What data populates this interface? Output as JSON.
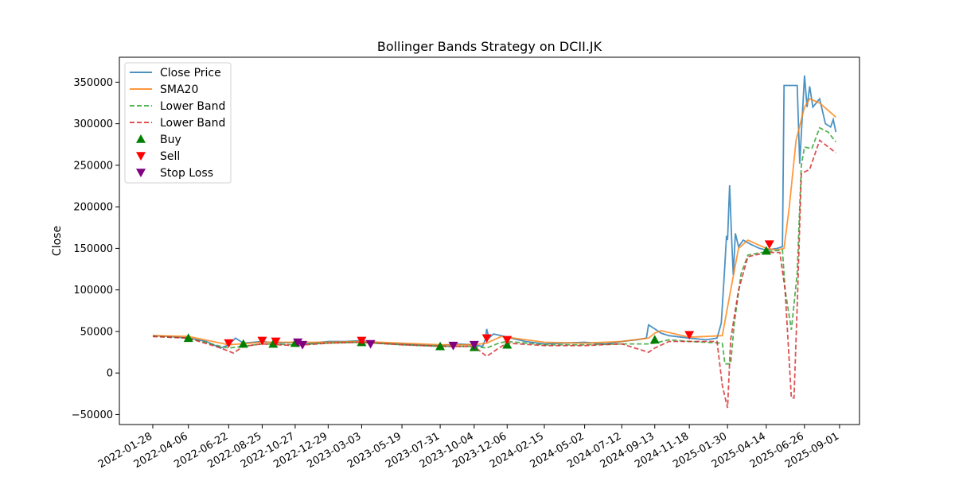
{
  "chart_data": {
    "type": "line",
    "title": "Bollinger Bands Strategy on DCII.JK",
    "xlabel": "",
    "ylabel": "Close",
    "x_range": [
      "2022-01-28",
      "2025-09-30"
    ],
    "ylim": [
      -62000,
      380000
    ],
    "x_ticks": [
      "2022-01-28",
      "2022-04-06",
      "2022-06-22",
      "2022-08-25",
      "2022-10-27",
      "2022-12-29",
      "2023-03-03",
      "2023-05-19",
      "2023-07-31",
      "2023-10-04",
      "2023-12-06",
      "2024-02-15",
      "2024-05-02",
      "2024-07-12",
      "2024-09-13",
      "2024-11-18",
      "2025-01-30",
      "2025-04-14",
      "2025-06-26",
      "2025-09-01"
    ],
    "y_ticks": [
      -50000,
      0,
      50000,
      100000,
      150000,
      200000,
      250000,
      300000,
      350000
    ],
    "y_tick_labels": [
      "−50000",
      "0",
      "50000",
      "100000",
      "150000",
      "200000",
      "250000",
      "300000",
      "350000"
    ],
    "grid": false,
    "legend_position": "top-left",
    "colors": {
      "close": "#1f77b4",
      "sma": "#ff7f0e",
      "lower1": "#2ca02c",
      "lower2": "#d62728",
      "buy": "#008000",
      "sell": "#ff0000",
      "stop": "#800080"
    },
    "series": [
      {
        "name": "Close Price",
        "key": "close",
        "style": "solid",
        "points": [
          [
            "2022-01-28",
            45000
          ],
          [
            "2022-03-01",
            44000
          ],
          [
            "2022-04-06",
            42000
          ],
          [
            "2022-05-10",
            38000
          ],
          [
            "2022-06-07",
            30000
          ],
          [
            "2022-06-22",
            34000
          ],
          [
            "2022-07-05",
            42000
          ],
          [
            "2022-07-20",
            36000
          ],
          [
            "2022-08-25",
            38000
          ],
          [
            "2022-09-20",
            36000
          ],
          [
            "2022-10-27",
            37000
          ],
          [
            "2022-11-15",
            35000
          ],
          [
            "2022-12-29",
            38000
          ],
          [
            "2023-02-01",
            38000
          ],
          [
            "2023-03-03",
            39000
          ],
          [
            "2023-04-05",
            36000
          ],
          [
            "2023-05-19",
            35000
          ],
          [
            "2023-06-20",
            34000
          ],
          [
            "2023-07-31",
            33000
          ],
          [
            "2023-09-01",
            35000
          ],
          [
            "2023-10-04",
            34000
          ],
          [
            "2023-10-20",
            32000
          ],
          [
            "2023-10-25",
            40000
          ],
          [
            "2023-10-28",
            53000
          ],
          [
            "2023-11-01",
            42000
          ],
          [
            "2023-11-10",
            47000
          ],
          [
            "2023-11-25",
            45000
          ],
          [
            "2023-12-06",
            43000
          ],
          [
            "2024-01-10",
            38000
          ],
          [
            "2024-02-15",
            35000
          ],
          [
            "2024-03-20",
            36000
          ],
          [
            "2024-05-02",
            37000
          ],
          [
            "2024-06-10",
            35000
          ],
          [
            "2024-07-12",
            38000
          ],
          [
            "2024-08-10",
            40000
          ],
          [
            "2024-08-28",
            42000
          ],
          [
            "2024-09-01",
            58000
          ],
          [
            "2024-09-13",
            53000
          ],
          [
            "2024-09-25",
            48000
          ],
          [
            "2024-10-10",
            45000
          ],
          [
            "2024-11-18",
            42000
          ],
          [
            "2024-12-20",
            40000
          ],
          [
            "2025-01-10",
            42000
          ],
          [
            "2025-01-18",
            60000
          ],
          [
            "2025-01-24",
            120000
          ],
          [
            "2025-01-28",
            165000
          ],
          [
            "2025-01-30",
            160000
          ],
          [
            "2025-02-03",
            226000
          ],
          [
            "2025-02-07",
            160000
          ],
          [
            "2025-02-10",
            118000
          ],
          [
            "2025-02-14",
            168000
          ],
          [
            "2025-02-20",
            152000
          ],
          [
            "2025-03-01",
            160000
          ],
          [
            "2025-03-15",
            155000
          ],
          [
            "2025-04-01",
            150000
          ],
          [
            "2025-04-14",
            148000
          ],
          [
            "2025-05-05",
            150000
          ],
          [
            "2025-05-15",
            152000
          ],
          [
            "2025-05-18",
            346000
          ],
          [
            "2025-05-25",
            346000
          ],
          [
            "2025-06-12",
            346000
          ],
          [
            "2025-06-17",
            252000
          ],
          [
            "2025-06-21",
            300000
          ],
          [
            "2025-06-26",
            358000
          ],
          [
            "2025-07-01",
            320000
          ],
          [
            "2025-07-06",
            345000
          ],
          [
            "2025-07-12",
            320000
          ],
          [
            "2025-07-25",
            330000
          ],
          [
            "2025-08-05",
            300000
          ],
          [
            "2025-08-15",
            296000
          ],
          [
            "2025-08-20",
            305000
          ],
          [
            "2025-08-25",
            290000
          ]
        ]
      },
      {
        "name": "SMA20",
        "key": "sma",
        "style": "solid",
        "points": [
          [
            "2022-01-28",
            45000
          ],
          [
            "2022-04-06",
            44000
          ],
          [
            "2022-06-07",
            36000
          ],
          [
            "2022-06-22",
            34000
          ],
          [
            "2022-08-25",
            37000
          ],
          [
            "2022-10-27",
            37000
          ],
          [
            "2022-12-29",
            37000
          ],
          [
            "2023-03-03",
            38000
          ],
          [
            "2023-05-19",
            36000
          ],
          [
            "2023-07-31",
            34000
          ],
          [
            "2023-10-04",
            34000
          ],
          [
            "2023-10-28",
            36000
          ],
          [
            "2023-11-25",
            44000
          ],
          [
            "2023-12-06",
            43000
          ],
          [
            "2024-02-15",
            37000
          ],
          [
            "2024-05-02",
            36000
          ],
          [
            "2024-07-12",
            38000
          ],
          [
            "2024-09-01",
            42000
          ],
          [
            "2024-09-13",
            48000
          ],
          [
            "2024-09-25",
            51000
          ],
          [
            "2024-11-18",
            43000
          ],
          [
            "2025-01-20",
            45000
          ],
          [
            "2025-02-08",
            110000
          ],
          [
            "2025-02-20",
            150000
          ],
          [
            "2025-03-10",
            160000
          ],
          [
            "2025-04-14",
            150000
          ],
          [
            "2025-05-05",
            148000
          ],
          [
            "2025-05-18",
            150000
          ],
          [
            "2025-05-28",
            200000
          ],
          [
            "2025-06-10",
            280000
          ],
          [
            "2025-06-26",
            320000
          ],
          [
            "2025-07-06",
            330000
          ],
          [
            "2025-07-25",
            325000
          ],
          [
            "2025-08-25",
            308000
          ]
        ]
      },
      {
        "name": "Lower Band",
        "key": "lower1",
        "style": "dashed",
        "points": [
          [
            "2022-01-28",
            44000
          ],
          [
            "2022-04-06",
            42000
          ],
          [
            "2022-06-07",
            32000
          ],
          [
            "2022-06-22",
            30000
          ],
          [
            "2022-08-25",
            35000
          ],
          [
            "2022-10-27",
            34000
          ],
          [
            "2022-12-29",
            36000
          ],
          [
            "2023-03-03",
            37000
          ],
          [
            "2023-05-19",
            34000
          ],
          [
            "2023-07-31",
            32000
          ],
          [
            "2023-10-04",
            32000
          ],
          [
            "2023-10-28",
            30000
          ],
          [
            "2023-11-20",
            36000
          ],
          [
            "2023-12-06",
            38000
          ],
          [
            "2024-02-15",
            34000
          ],
          [
            "2024-05-02",
            34000
          ],
          [
            "2024-07-12",
            35000
          ],
          [
            "2024-09-01",
            35000
          ],
          [
            "2024-09-13",
            36000
          ],
          [
            "2024-10-10",
            40000
          ],
          [
            "2024-11-18",
            38000
          ],
          [
            "2025-01-20",
            36000
          ],
          [
            "2025-01-25",
            11000
          ],
          [
            "2025-02-05",
            11000
          ],
          [
            "2025-02-12",
            60000
          ],
          [
            "2025-02-25",
            120000
          ],
          [
            "2025-03-10",
            142000
          ],
          [
            "2025-04-14",
            146000
          ],
          [
            "2025-05-15",
            148000
          ],
          [
            "2025-05-20",
            100000
          ],
          [
            "2025-06-01",
            52000
          ],
          [
            "2025-06-12",
            120000
          ],
          [
            "2025-06-20",
            250000
          ],
          [
            "2025-06-26",
            272000
          ],
          [
            "2025-07-10",
            270000
          ],
          [
            "2025-07-25",
            295000
          ],
          [
            "2025-08-10",
            290000
          ],
          [
            "2025-08-25",
            278000
          ]
        ]
      },
      {
        "name": "Lower Band",
        "key": "lower2",
        "style": "dashed",
        "points": [
          [
            "2022-01-28",
            44000
          ],
          [
            "2022-04-06",
            42000
          ],
          [
            "2022-06-07",
            30000
          ],
          [
            "2022-07-01",
            24000
          ],
          [
            "2022-07-20",
            32000
          ],
          [
            "2022-08-25",
            35000
          ],
          [
            "2022-10-27",
            33000
          ],
          [
            "2022-12-29",
            36000
          ],
          [
            "2023-03-03",
            37000
          ],
          [
            "2023-05-19",
            34000
          ],
          [
            "2023-07-31",
            32000
          ],
          [
            "2023-10-04",
            32000
          ],
          [
            "2023-10-28",
            20000
          ],
          [
            "2023-11-20",
            30000
          ],
          [
            "2023-12-06",
            36000
          ],
          [
            "2024-02-15",
            33000
          ],
          [
            "2024-05-02",
            33000
          ],
          [
            "2024-07-12",
            35000
          ],
          [
            "2024-09-01",
            25000
          ],
          [
            "2024-09-13",
            30000
          ],
          [
            "2024-10-10",
            38000
          ],
          [
            "2024-11-18",
            38000
          ],
          [
            "2025-01-10",
            38000
          ],
          [
            "2025-01-20",
            -15000
          ],
          [
            "2025-01-30",
            -42000
          ],
          [
            "2025-02-05",
            40000
          ],
          [
            "2025-02-20",
            100000
          ],
          [
            "2025-03-10",
            140000
          ],
          [
            "2025-04-14",
            145000
          ],
          [
            "2025-05-10",
            145000
          ],
          [
            "2025-05-20",
            100000
          ],
          [
            "2025-06-01",
            -30000
          ],
          [
            "2025-06-06",
            -30000
          ],
          [
            "2025-06-12",
            80000
          ],
          [
            "2025-06-20",
            240000
          ],
          [
            "2025-07-06",
            245000
          ],
          [
            "2025-07-25",
            280000
          ],
          [
            "2025-08-25",
            265000
          ]
        ]
      }
    ],
    "markers": {
      "buy": {
        "name": "Buy",
        "points": [
          [
            "2022-04-06",
            42000
          ],
          [
            "2022-07-20",
            35000
          ],
          [
            "2022-09-15",
            35000
          ],
          [
            "2022-10-27",
            36000
          ],
          [
            "2023-03-03",
            37000
          ],
          [
            "2023-07-31",
            32000
          ],
          [
            "2023-10-04",
            31000
          ],
          [
            "2023-12-06",
            34000
          ],
          [
            "2024-09-13",
            40000
          ],
          [
            "2025-04-14",
            147000
          ]
        ]
      },
      "sell": {
        "name": "Sell",
        "points": [
          [
            "2022-06-22",
            36000
          ],
          [
            "2022-08-25",
            39000
          ],
          [
            "2022-09-20",
            38000
          ],
          [
            "2023-03-03",
            39000
          ],
          [
            "2023-10-28",
            42000
          ],
          [
            "2023-12-06",
            40000
          ],
          [
            "2024-11-18",
            46000
          ],
          [
            "2025-04-20",
            155000
          ]
        ]
      },
      "stop": {
        "name": "Stop Loss",
        "points": [
          [
            "2022-11-01",
            37000
          ],
          [
            "2022-11-10",
            34000
          ],
          [
            "2023-03-20",
            35000
          ],
          [
            "2023-08-25",
            33000
          ],
          [
            "2023-10-04",
            34000
          ]
        ]
      }
    }
  }
}
